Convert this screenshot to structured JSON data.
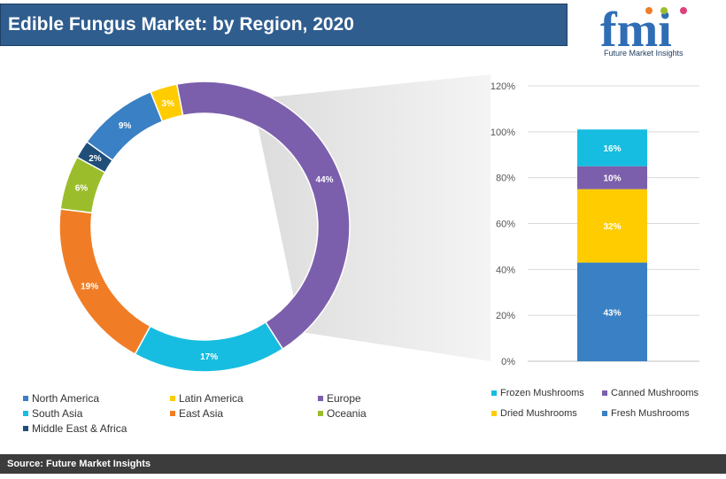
{
  "header": {
    "title": "Edible Fungus Market: by Region, 2020"
  },
  "logo": {
    "letters": "fmi",
    "tagline": "Future Market Insights"
  },
  "footer": {
    "source": "Source: Future Market Insights"
  },
  "chart_data": [
    {
      "type": "pie",
      "title": "",
      "categories": [
        "Europe",
        "South Asia",
        "East Asia",
        "Oceania",
        "Middle East & Africa",
        "North America",
        "Latin America"
      ],
      "values": [
        44,
        17,
        19,
        6,
        2,
        9,
        3
      ],
      "labels": [
        "44%",
        "17%",
        "19%",
        "6%",
        "2%",
        "9%",
        "3%"
      ],
      "colors": [
        "#7c5fac",
        "#16bde0",
        "#f07d26",
        "#9cbd2b",
        "#1f4e79",
        "#3a80c4",
        "#ffcc00"
      ],
      "legend": [
        {
          "name": "North America",
          "color": "#3a80c4"
        },
        {
          "name": "Latin America",
          "color": "#ffcc00"
        },
        {
          "name": "Europe",
          "color": "#7c5fac"
        },
        {
          "name": "South Asia",
          "color": "#16bde0"
        },
        {
          "name": "East Asia",
          "color": "#f07d26"
        },
        {
          "name": "Oceania",
          "color": "#9cbd2b"
        },
        {
          "name": "Middle East & Africa",
          "color": "#1f4e79"
        }
      ],
      "legend_position": "bottom"
    },
    {
      "type": "bar",
      "stacked": true,
      "title": "",
      "series": [
        {
          "name": "Fresh Mushrooms",
          "value": 43,
          "label": "43%",
          "color": "#3a80c4"
        },
        {
          "name": "Dried Mushrooms",
          "value": 32,
          "label": "32%",
          "color": "#ffcc00"
        },
        {
          "name": "Canned Mushrooms",
          "value": 10,
          "label": "10%",
          "color": "#7c5fac"
        },
        {
          "name": "Frozen Mushrooms",
          "value": 16,
          "label": "16%",
          "color": "#16bde0"
        }
      ],
      "legend": [
        {
          "name": "Frozen Mushrooms",
          "color": "#16bde0"
        },
        {
          "name": "Canned Mushrooms",
          "color": "#7c5fac"
        },
        {
          "name": "Dried Mushrooms",
          "color": "#ffcc00"
        },
        {
          "name": "Fresh Mushrooms",
          "color": "#3a80c4"
        }
      ],
      "y_ticks": [
        "0%",
        "20%",
        "40%",
        "60%",
        "80%",
        "100%",
        "120%"
      ],
      "ylim": [
        0,
        120
      ],
      "grid": true,
      "legend_position": "bottom"
    }
  ]
}
